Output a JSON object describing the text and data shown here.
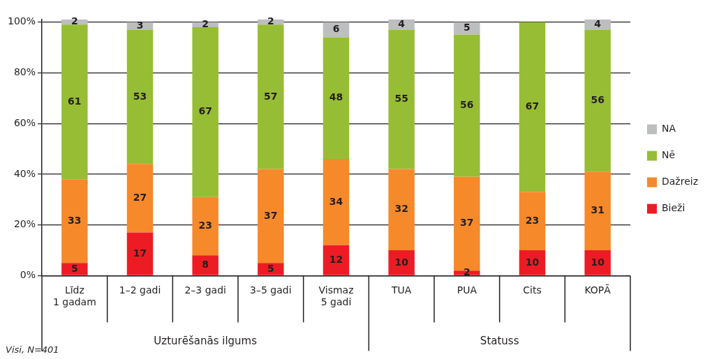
{
  "chart_data": {
    "type": "bar",
    "stacked": true,
    "categories": [
      "Līdz\n1 gadam",
      "1–2 gadi",
      "2–3 gadi",
      "3–5 gadi",
      "Vismaz\n5 gadi",
      "TUA",
      "PUA",
      "Cits",
      "KOPĀ"
    ],
    "series": [
      {
        "name": "Bieži",
        "color": "#ed1c24",
        "values": [
          5,
          17,
          8,
          5,
          12,
          10,
          2,
          10,
          10
        ]
      },
      {
        "name": "Dažreiz",
        "color": "#f6892a",
        "values": [
          33,
          27,
          23,
          37,
          34,
          32,
          37,
          23,
          31
        ]
      },
      {
        "name": "Nē",
        "color": "#97bd34",
        "values": [
          61,
          53,
          67,
          57,
          48,
          55,
          56,
          67,
          56
        ]
      },
      {
        "name": "NA",
        "color": "#bcbec0",
        "values": [
          2,
          3,
          2,
          2,
          6,
          4,
          5,
          null,
          4
        ]
      }
    ],
    "ylim": [
      0,
      101
    ],
    "yticks": [
      {
        "value": 0,
        "label": "0%"
      },
      {
        "value": 20,
        "label": "20%"
      },
      {
        "value": 40,
        "label": "40%"
      },
      {
        "value": 60,
        "label": "60%"
      },
      {
        "value": 80,
        "label": "80%"
      },
      {
        "value": 100,
        "label": "100%"
      }
    ],
    "grid": "y",
    "legend": "right",
    "data_labels": true,
    "annotations": [
      "Uzturēšanās ilgums",
      "Statuss",
      "Visi, N=401"
    ]
  }
}
